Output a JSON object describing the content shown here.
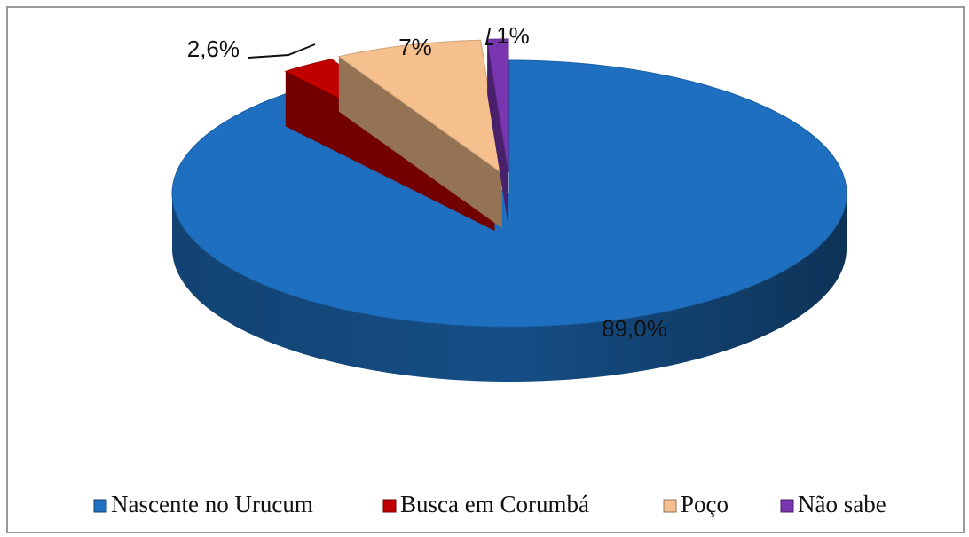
{
  "chart_data": {
    "type": "pie3d",
    "categories": [
      "Nascente no Urucum",
      "Busca em Corumbá",
      "Poço",
      "Não sabe"
    ],
    "values": [
      89.0,
      2.6,
      7,
      1
    ],
    "value_labels": [
      "89,0%",
      "2,6%",
      "7%",
      "1%"
    ],
    "colors": [
      "#1e6fc0",
      "#c00000",
      "#f6c08e",
      "#7a35b0"
    ],
    "legend": "bottom"
  }
}
